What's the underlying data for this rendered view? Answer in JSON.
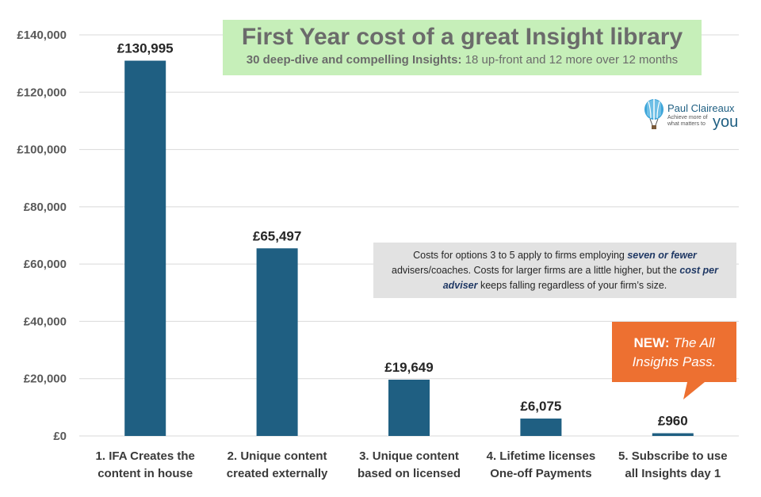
{
  "chart_data": {
    "type": "bar",
    "title": "First Year cost of a great Insight library",
    "subtitle_bold": "30 deep-dive and compelling Insights:",
    "subtitle_rest": " 18 up-front and 12 more over 12 months",
    "categories": [
      [
        "1. IFA Creates the",
        "content in house"
      ],
      [
        "2. Unique content",
        "created externally"
      ],
      [
        "3. Unique content",
        "based on licensed"
      ],
      [
        "4. Lifetime licenses",
        "One-off Payments"
      ],
      [
        "5. Subscribe to use",
        "all Insights day 1"
      ]
    ],
    "values": [
      130995,
      65497,
      19649,
      6075,
      960
    ],
    "data_labels": [
      "£130,995",
      "£65,497",
      "£19,649",
      "£6,075",
      "£960"
    ],
    "ylim": [
      0,
      140000
    ],
    "yticks": [
      0,
      20000,
      40000,
      60000,
      80000,
      100000,
      120000,
      140000
    ],
    "ytick_labels": [
      "£0",
      "£20,000",
      "£40,000",
      "£60,000",
      "£80,000",
      "£100,000",
      "£120,000",
      "£140,000"
    ],
    "grid": true,
    "legend": "none",
    "colors": {
      "bar": "#1f5f82",
      "title_box": "#c6efb9",
      "note_box": "#e2e2e2",
      "callout": "#ed7031"
    }
  },
  "note": {
    "part1": "Costs for options 3 to 5 apply to firms employing ",
    "emph1": "seven or fewer",
    "part2": " advisers/coaches. Costs for larger firms are a little higher, but the ",
    "emph2": "cost per adviser",
    "part3": " keeps falling regardless of your firm’s size."
  },
  "callout": {
    "new_label": "NEW:",
    "rest": " The All Insights Pass."
  },
  "logo": {
    "name": "Paul Claireaux",
    "tagline_1": "Achieve more of",
    "tagline_2": "what matters to",
    "you": "you",
    "icon": "hot-air-balloon-icon"
  }
}
